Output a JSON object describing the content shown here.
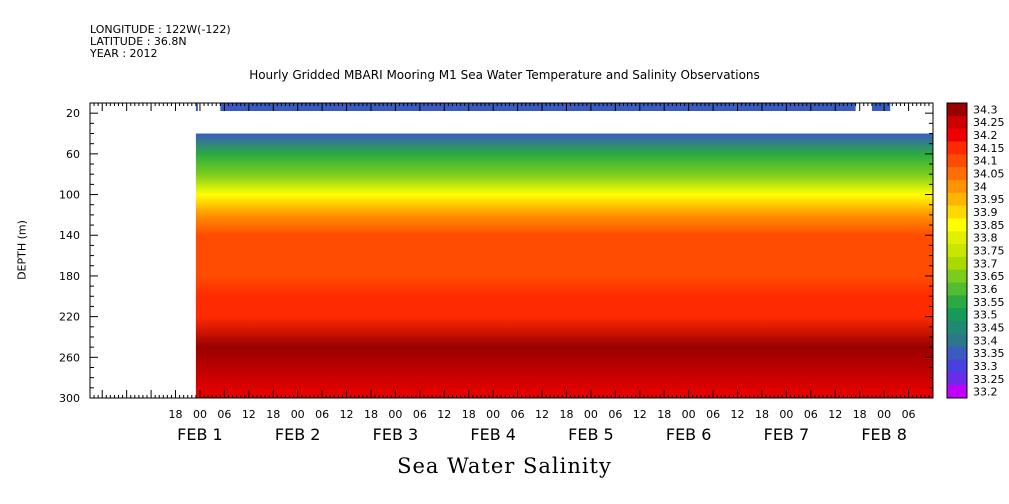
{
  "header": {
    "longitude": "LONGITUDE : 122W(-122)",
    "latitude": "LATITUDE : 36.8N",
    "year": "YEAR : 2012"
  },
  "chart_data": {
    "type": "heatmap",
    "title": "Hourly Gridded MBARI Mooring M1 Sea Water Temperature and Salinity Observations",
    "caption": "Sea Water Salinity",
    "ylabel": "DEPTH (m)",
    "xlabel": "",
    "x_unit": "hours since FEB 1 00:00",
    "x_range_hours": [
      -27,
      180
    ],
    "ylim": [
      300,
      10
    ],
    "y_ticks": [
      20,
      60,
      100,
      140,
      180,
      220,
      260,
      300
    ],
    "x_ticks": [
      {
        "h": -6,
        "label": "18"
      },
      {
        "h": 0,
        "label": "00"
      },
      {
        "h": 6,
        "label": "06"
      },
      {
        "h": 12,
        "label": "12"
      },
      {
        "h": 18,
        "label": "18"
      },
      {
        "h": 24,
        "label": "00"
      },
      {
        "h": 30,
        "label": "06"
      },
      {
        "h": 36,
        "label": "12"
      },
      {
        "h": 42,
        "label": "18"
      },
      {
        "h": 48,
        "label": "00"
      },
      {
        "h": 54,
        "label": "06"
      },
      {
        "h": 60,
        "label": "12"
      },
      {
        "h": 66,
        "label": "18"
      },
      {
        "h": 72,
        "label": "00"
      },
      {
        "h": 78,
        "label": "06"
      },
      {
        "h": 84,
        "label": "12"
      },
      {
        "h": 90,
        "label": "18"
      },
      {
        "h": 96,
        "label": "00"
      },
      {
        "h": 102,
        "label": "06"
      },
      {
        "h": 108,
        "label": "12"
      },
      {
        "h": 114,
        "label": "18"
      },
      {
        "h": 120,
        "label": "00"
      },
      {
        "h": 126,
        "label": "06"
      },
      {
        "h": 132,
        "label": "12"
      },
      {
        "h": 138,
        "label": "18"
      },
      {
        "h": 144,
        "label": "00"
      },
      {
        "h": 150,
        "label": "06"
      },
      {
        "h": 156,
        "label": "12"
      },
      {
        "h": 162,
        "label": "18"
      },
      {
        "h": 168,
        "label": "00"
      },
      {
        "h": 174,
        "label": "06"
      }
    ],
    "day_labels": [
      {
        "h": 0,
        "label": "FEB  1"
      },
      {
        "h": 24,
        "label": "FEB  2"
      },
      {
        "h": 48,
        "label": "FEB  3"
      },
      {
        "h": 72,
        "label": "FEB  4"
      },
      {
        "h": 96,
        "label": "FEB  5"
      },
      {
        "h": 120,
        "label": "FEB  6"
      },
      {
        "h": 144,
        "label": "FEB  7"
      },
      {
        "h": 168,
        "label": "FEB  8"
      }
    ],
    "colorbar": {
      "levels": [
        "34.3",
        "34.25",
        "34.2",
        "34.15",
        "34.1",
        "34.05",
        "34",
        "33.95",
        "33.9",
        "33.85",
        "33.8",
        "33.75",
        "33.7",
        "33.65",
        "33.6",
        "33.55",
        "33.5",
        "33.45",
        "33.4",
        "33.35",
        "33.3",
        "33.25",
        "33.2"
      ],
      "colors": [
        "#990000",
        "#cc0000",
        "#ee0000",
        "#ff2a00",
        "#ff4c00",
        "#ff6e00",
        "#ff9300",
        "#ffb400",
        "#ffd800",
        "#ffff00",
        "#e0f000",
        "#c8e600",
        "#a8da00",
        "#7acc1e",
        "#52bc32",
        "#2aaa42",
        "#159a5a",
        "#1e8a72",
        "#2a7888",
        "#3a5cc0",
        "#4a40e0",
        "#6a2ce8",
        "#c000ff"
      ]
    },
    "surface_sensor": {
      "depth_m": 10,
      "value_band": "33.3 to 33.35",
      "note": "partial coverage from about FEB 1 06 to FEB 8 08"
    },
    "profile_rows": [
      {
        "depth_m": 40,
        "salinity_range": [
          33.3,
          33.35
        ]
      },
      {
        "depth_m": 60,
        "salinity_range": [
          33.45,
          33.6
        ]
      },
      {
        "depth_m": 80,
        "salinity_range": [
          33.6,
          33.75
        ]
      },
      {
        "depth_m": 100,
        "salinity_range": [
          33.8,
          33.9
        ]
      },
      {
        "depth_m": 120,
        "salinity_range": [
          33.95,
          34.05
        ]
      },
      {
        "depth_m": 140,
        "salinity_range": [
          34.05,
          34.1
        ]
      },
      {
        "depth_m": 180,
        "salinity_range": [
          34.05,
          34.1
        ]
      },
      {
        "depth_m": 200,
        "salinity_range": [
          34.1,
          34.15
        ]
      },
      {
        "depth_m": 220,
        "salinity_range": [
          34.15,
          34.2
        ]
      },
      {
        "depth_m": 250,
        "salinity_range": [
          34.25,
          34.3
        ]
      },
      {
        "depth_m": 280,
        "salinity_range": [
          34.2,
          34.25
        ]
      },
      {
        "depth_m": 300,
        "salinity_range": [
          34.2,
          34.2
        ]
      }
    ]
  }
}
